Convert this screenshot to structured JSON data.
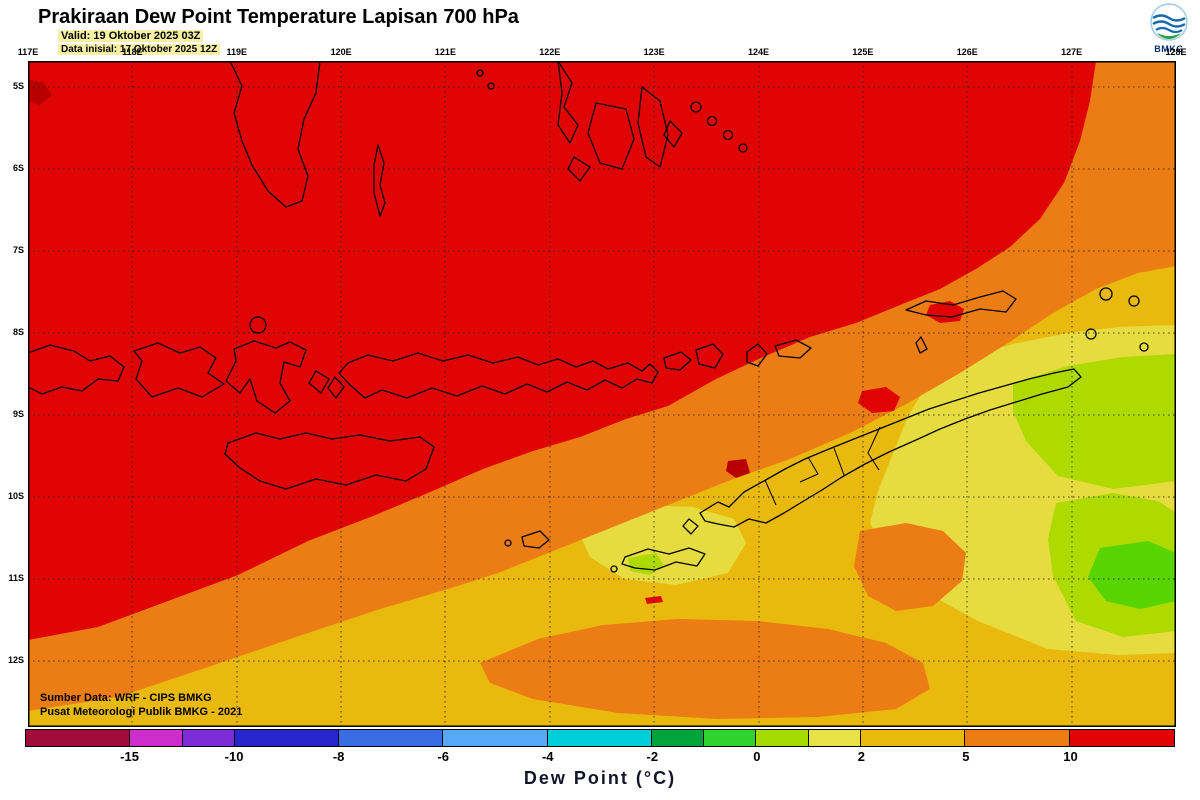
{
  "header": {
    "title": "Prakiraan Dew Point Temperature Lapisan 700 hPa",
    "valid_line": "Valid: 19 Oktober 2025 03Z",
    "init_line": "Data inisial: 17 Oktober 2025 12Z",
    "logo_text": "BMKG"
  },
  "map": {
    "lon_labels": [
      "117E",
      "118E",
      "119E",
      "120E",
      "121E",
      "122E",
      "123E",
      "124E",
      "125E",
      "126E",
      "127E",
      "128E"
    ],
    "lat_labels": [
      "5S",
      "6S",
      "7S",
      "8S",
      "9S",
      "10S",
      "11S",
      "12S"
    ],
    "source_line1": "Sumber Data: WRF - CIPS BMKG",
    "source_line2": "Pusat Meteorologi Publik BMKG - 2021",
    "field_colors": {
      "red": "#e00404",
      "dark_red": "#b80000",
      "orange": "#ec7d14",
      "gold": "#e9b90e",
      "yellow": "#e6dc40",
      "yellow_green": "#aeda00",
      "green": "#58d400",
      "coast": "#000000"
    }
  },
  "legend": {
    "title": "Dew Point (°C)",
    "total_units": 11,
    "segments": [
      {
        "color": "#a00d3c",
        "units": 1
      },
      {
        "color": "#cb2ecb",
        "units": 0.5
      },
      {
        "color": "#7b2cd6",
        "units": 0.5
      },
      {
        "color": "#2626cc",
        "units": 1
      },
      {
        "color": "#3a6ce4",
        "units": 1
      },
      {
        "color": "#58a8f8",
        "units": 1
      },
      {
        "color": "#00ced8",
        "units": 1
      },
      {
        "color": "#00a43c",
        "units": 0.5
      },
      {
        "color": "#2fd32f",
        "units": 0.5
      },
      {
        "color": "#a4da00",
        "units": 0.5
      },
      {
        "color": "#e8e148",
        "units": 0.5
      },
      {
        "color": "#e9b90e",
        "units": 1
      },
      {
        "color": "#ec7d14",
        "units": 1
      },
      {
        "color": "#e00404",
        "units": 1
      }
    ],
    "ticks": [
      {
        "label": "-15",
        "units": 1
      },
      {
        "label": "-10",
        "units": 2
      },
      {
        "label": "-8",
        "units": 3
      },
      {
        "label": "-6",
        "units": 4
      },
      {
        "label": "-4",
        "units": 5
      },
      {
        "label": "-2",
        "units": 6
      },
      {
        "label": "0",
        "units": 7
      },
      {
        "label": "2",
        "units": 8
      },
      {
        "label": "5",
        "units": 9
      },
      {
        "label": "10",
        "units": 10
      }
    ]
  }
}
